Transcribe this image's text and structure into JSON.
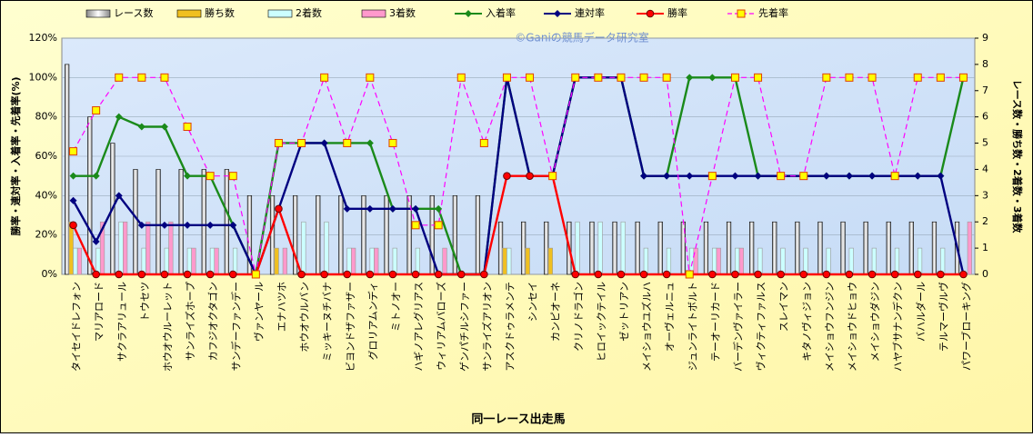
{
  "chart_data": {
    "type": "combo",
    "watermark": "©Ganiの競馬データ研究室",
    "x_label": "同一レース出走馬",
    "y_label": "勝率・連対率・入着率・先着率(%)",
    "y2_label": "レース数・勝ち数・2着数・3着数",
    "categories": [
      "タイセイドレフォン",
      "マリアロード",
      "サクラアリュール",
      "トウセツ",
      "ホウオウルーレット",
      "サンライズホープ",
      "カフジオクタゴン",
      "サンデーファンデー",
      "ヴァンヤール",
      "エナハツホ",
      "ホウオウルバン",
      "ミッキーヌチバナ",
      "ビヨンドザファザー",
      "グロリアムンディ",
      "ミトノオー",
      "ハギノアレグリアス",
      "ウィリアムバローズ",
      "ゲンパチルシファー",
      "サンライズアリオン",
      "アスクドゥラメンテ",
      "シンセイ",
      "カンピオーネ",
      "クリノドラゴン",
      "ヒロイックテイル",
      "ゼットリアン",
      "メイショウユズルハ",
      "オーヴェルニュ",
      "ジュンライトボルト",
      "テーオーリカード",
      "バーデンヴァイラー",
      "ヴィクティファルス",
      "スレイマン",
      "キタノヴィジョン",
      "メイショウフンジン",
      "メイショウドヒョウ",
      "メイショウダジン",
      "ハヤブサナンデクン",
      "バハルダール",
      "テルマーヴルヴ",
      "パワーブローキング"
    ],
    "ylim": [
      0,
      120
    ],
    "yticks": [
      {
        "value": 0,
        "label": "0%"
      },
      {
        "value": 20,
        "label": "20%"
      },
      {
        "value": 40,
        "label": "40%"
      },
      {
        "value": 60,
        "label": "60%"
      },
      {
        "value": 80,
        "label": "80%"
      },
      {
        "value": 100,
        "label": "100%"
      },
      {
        "value": 120,
        "label": "120%"
      }
    ],
    "y2lim": [
      0,
      9
    ],
    "y2ticks": [
      0,
      1,
      2,
      3,
      4,
      5,
      6,
      7,
      8,
      9
    ],
    "series": [
      {
        "name": "レース数",
        "type": "bar",
        "axis": "y2",
        "color": "#ffffff",
        "values": [
          8,
          6,
          5,
          4,
          4,
          4,
          4,
          4,
          3,
          3,
          3,
          3,
          3,
          3,
          3,
          3,
          3,
          3,
          3,
          2,
          2,
          2,
          2,
          2,
          2,
          2,
          2,
          2,
          2,
          2,
          2,
          2,
          2,
          2,
          2,
          2,
          2,
          2,
          2,
          2
        ]
      },
      {
        "name": "勝ち数",
        "type": "bar",
        "axis": "y2",
        "color": "#f0c020",
        "values": [
          2,
          0,
          0,
          0,
          0,
          0,
          0,
          0,
          0,
          1,
          0,
          0,
          0,
          0,
          0,
          0,
          0,
          0,
          0,
          1,
          1,
          1,
          0,
          0,
          0,
          0,
          0,
          0,
          0,
          0,
          0,
          0,
          0,
          0,
          0,
          0,
          0,
          0,
          0,
          0
        ]
      },
      {
        "name": "2着数",
        "type": "bar",
        "axis": "y2",
        "color": "#ccffff",
        "values": [
          1,
          1,
          2,
          1,
          1,
          1,
          1,
          1,
          0,
          0,
          2,
          2,
          1,
          1,
          1,
          1,
          0,
          0,
          0,
          1,
          0,
          0,
          2,
          2,
          2,
          1,
          1,
          1,
          1,
          1,
          1,
          1,
          1,
          1,
          1,
          1,
          1,
          1,
          1,
          0
        ]
      },
      {
        "name": "3着数",
        "type": "bar",
        "axis": "y2",
        "color": "#ff99cc",
        "values": [
          1,
          2,
          2,
          2,
          2,
          1,
          1,
          0,
          0,
          1,
          0,
          0,
          1,
          1,
          0,
          0,
          1,
          0,
          0,
          0,
          0,
          0,
          0,
          0,
          0,
          0,
          0,
          1,
          1,
          1,
          0,
          0,
          0,
          0,
          0,
          0,
          0,
          0,
          0,
          2
        ]
      },
      {
        "name": "入着率",
        "type": "line",
        "axis": "y",
        "color": "#1a8a1a",
        "marker": "diamond",
        "values": [
          50,
          50,
          80,
          75,
          75,
          50,
          50,
          25,
          0,
          66.7,
          66.7,
          66.7,
          66.7,
          66.7,
          33.3,
          33.3,
          33.3,
          0,
          0,
          100,
          50,
          50,
          100,
          100,
          100,
          50,
          50,
          100,
          100,
          100,
          50,
          50,
          50,
          50,
          50,
          50,
          50,
          50,
          50,
          100
        ]
      },
      {
        "name": "連対率",
        "type": "line",
        "axis": "y",
        "color": "#000080",
        "marker": "diamond",
        "values": [
          37.5,
          16.7,
          40,
          25,
          25,
          25,
          25,
          25,
          0,
          33.3,
          66.7,
          66.7,
          33.3,
          33.3,
          33.3,
          33.3,
          0,
          0,
          0,
          100,
          50,
          50,
          100,
          100,
          100,
          50,
          50,
          50,
          50,
          50,
          50,
          50,
          50,
          50,
          50,
          50,
          50,
          50,
          50,
          0
        ]
      },
      {
        "name": "勝率",
        "type": "line",
        "axis": "y",
        "color": "#ff0000",
        "marker": "circle",
        "values": [
          25,
          0,
          0,
          0,
          0,
          0,
          0,
          0,
          0,
          33.3,
          0,
          0,
          0,
          0,
          0,
          0,
          0,
          0,
          0,
          50,
          50,
          50,
          0,
          0,
          0,
          0,
          0,
          0,
          0,
          0,
          0,
          0,
          0,
          0,
          0,
          0,
          0,
          0,
          0,
          0
        ]
      },
      {
        "name": "先着率",
        "type": "line",
        "axis": "y",
        "color": "#ff00ff",
        "marker": "square",
        "dashed": true,
        "values": [
          62.5,
          83.3,
          100,
          100,
          100,
          75,
          50,
          50,
          0,
          66.7,
          66.7,
          100,
          66.7,
          100,
          66.7,
          25,
          25,
          100,
          66.7,
          100,
          100,
          50,
          100,
          100,
          100,
          100,
          100,
          0,
          50,
          100,
          100,
          50,
          50,
          100,
          100,
          100,
          50,
          100,
          100,
          100
        ]
      }
    ]
  }
}
